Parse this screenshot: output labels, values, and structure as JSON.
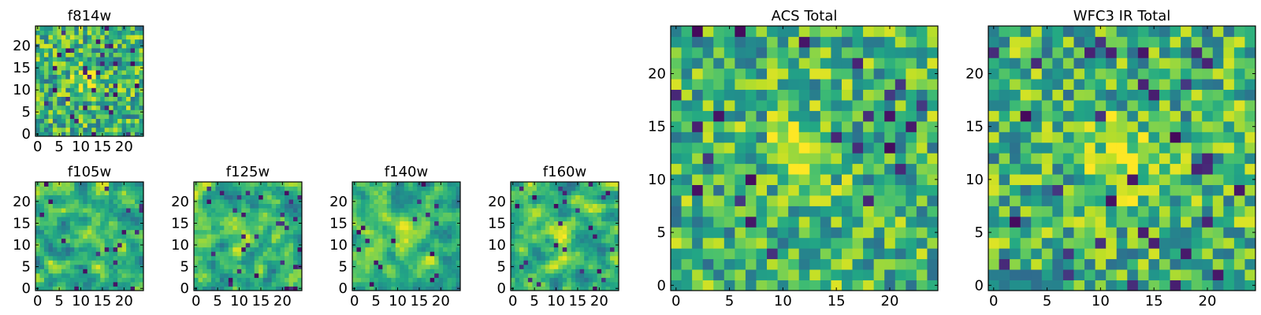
{
  "chart_data": [
    {
      "type": "heatmap",
      "id": "f814w",
      "title": "f814w",
      "grid": [
        25,
        25
      ],
      "colormap": "viridis",
      "xticks": [
        "0",
        "5",
        "10",
        "15",
        "20"
      ],
      "yticks": [
        "0",
        "5",
        "10",
        "15",
        "20"
      ],
      "xlim": [
        -0.5,
        24.5
      ],
      "ylim": [
        -0.5,
        24.5
      ],
      "seed": 11,
      "smooth": 0,
      "center_boost": 0.25,
      "dark_fraction": 0.05
    },
    {
      "type": "heatmap",
      "id": "f105w",
      "title": "f105w",
      "grid": [
        25,
        25
      ],
      "colormap": "viridis",
      "xticks": [
        "0",
        "5",
        "10",
        "15",
        "20"
      ],
      "yticks": [
        "0",
        "5",
        "10",
        "15",
        "20"
      ],
      "xlim": [
        -0.5,
        24.5
      ],
      "ylim": [
        -0.5,
        24.5
      ],
      "seed": 23,
      "smooth": 1,
      "center_boost": 0.2,
      "dark_fraction": 0.03
    },
    {
      "type": "heatmap",
      "id": "f125w",
      "title": "f125w",
      "grid": [
        25,
        25
      ],
      "colormap": "viridis",
      "xticks": [
        "0",
        "5",
        "10",
        "15",
        "20"
      ],
      "yticks": [
        "0",
        "5",
        "10",
        "15",
        "20"
      ],
      "xlim": [
        -0.5,
        24.5
      ],
      "ylim": [
        -0.5,
        24.5
      ],
      "seed": 37,
      "smooth": 1,
      "center_boost": 0.2,
      "dark_fraction": 0.04
    },
    {
      "type": "heatmap",
      "id": "f140w",
      "title": "f140w",
      "grid": [
        25,
        25
      ],
      "colormap": "viridis",
      "xticks": [
        "0",
        "5",
        "10",
        "15",
        "20"
      ],
      "yticks": [
        "0",
        "5",
        "10",
        "15",
        "20"
      ],
      "xlim": [
        -0.5,
        24.5
      ],
      "ylim": [
        -0.5,
        24.5
      ],
      "seed": 53,
      "smooth": 1,
      "center_boost": 0.25,
      "dark_fraction": 0.03
    },
    {
      "type": "heatmap",
      "id": "f160w",
      "title": "f160w",
      "grid": [
        25,
        25
      ],
      "colormap": "viridis",
      "xticks": [
        "0",
        "5",
        "10",
        "15",
        "20"
      ],
      "yticks": [
        "0",
        "5",
        "10",
        "15",
        "20"
      ],
      "xlim": [
        -0.5,
        24.5
      ],
      "ylim": [
        -0.5,
        24.5
      ],
      "seed": 71,
      "smooth": 1,
      "center_boost": 0.2,
      "dark_fraction": 0.04
    },
    {
      "type": "heatmap",
      "id": "acs_total",
      "title": "ACS Total",
      "grid": [
        25,
        25
      ],
      "colormap": "viridis",
      "xticks": [
        "0",
        "5",
        "10",
        "15",
        "20"
      ],
      "yticks": [
        "0",
        "5",
        "10",
        "15",
        "20"
      ],
      "xlim": [
        -0.5,
        24.5
      ],
      "ylim": [
        -0.5,
        24.5
      ],
      "seed": 89,
      "smooth": 0,
      "center_boost": 0.3,
      "dark_fraction": 0.04
    },
    {
      "type": "heatmap",
      "id": "wfc3_ir_total",
      "title": "WFC3 IR Total",
      "grid": [
        25,
        25
      ],
      "colormap": "viridis",
      "xticks": [
        "0",
        "5",
        "10",
        "15",
        "20"
      ],
      "yticks": [
        "0",
        "5",
        "10",
        "15",
        "20"
      ],
      "xlim": [
        -0.5,
        24.5
      ],
      "ylim": [
        -0.5,
        24.5
      ],
      "seed": 97,
      "smooth": 0,
      "center_boost": 0.3,
      "dark_fraction": 0.04
    }
  ]
}
